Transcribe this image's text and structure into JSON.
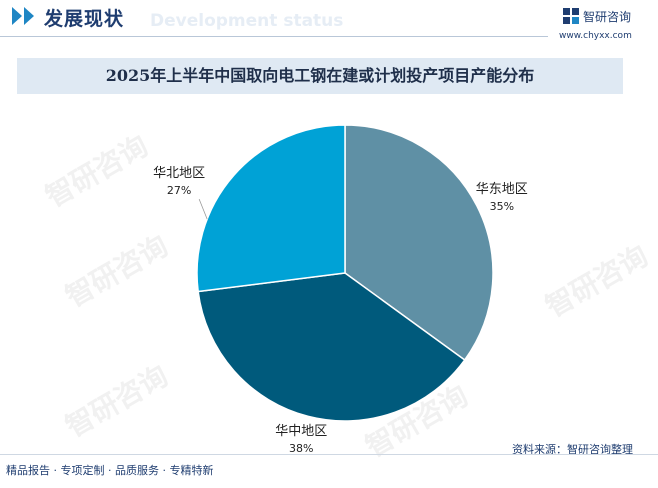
{
  "header": {
    "section_title": "发展现状",
    "section_subtitle": "Development status"
  },
  "brand": {
    "name": "智研咨询",
    "url": "www.chyxx.com"
  },
  "watermark_text": "智研咨询",
  "chart_data": {
    "type": "pie",
    "title": "2025年上半年中国取向电工钢在建或计划投产项目产能分布",
    "slices": [
      {
        "label": "华东地区",
        "value": 35,
        "value_label": "35%",
        "color": "#5f90a5"
      },
      {
        "label": "华中地区",
        "value": 38,
        "value_label": "38%",
        "color": "#005a7c"
      },
      {
        "label": "华北地区",
        "value": 27,
        "value_label": "27%",
        "color": "#00a2d6"
      }
    ]
  },
  "footer": {
    "tagline": "精品报告 · 专项定制 · 品质服务 · 专精特新"
  },
  "source": "资料来源：智研咨询整理"
}
